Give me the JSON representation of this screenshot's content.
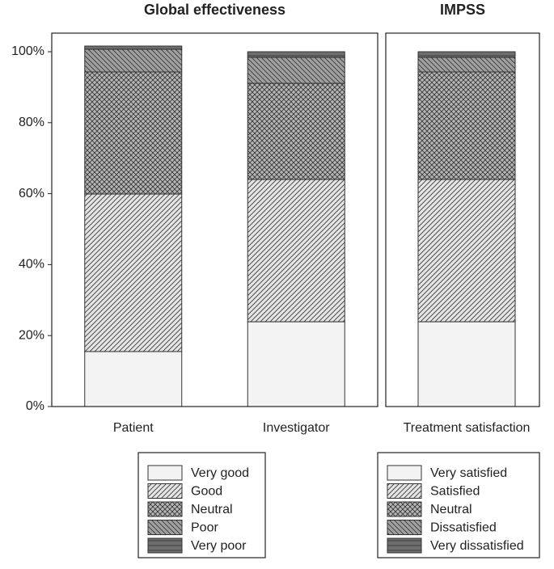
{
  "chart_data": [
    {
      "type": "bar",
      "stacked": true,
      "title": "Global effectiveness",
      "categories": [
        "Patient",
        "Investigator"
      ],
      "series": [
        {
          "name": "Very good",
          "color": "#f3f3f3",
          "pattern": "none",
          "values": [
            15.5,
            23.9
          ]
        },
        {
          "name": "Good",
          "color": "#e4e4e4",
          "pattern": "diagonal",
          "values": [
            44.4,
            40.1
          ]
        },
        {
          "name": "Neutral",
          "color": "#b5b5b5",
          "pattern": "crosshatch",
          "values": [
            34.4,
            27.1
          ]
        },
        {
          "name": "Poor",
          "color": "#a0a0a0",
          "pattern": "back-diagonal",
          "values": [
            6.4,
            7.3
          ]
        },
        {
          "name": "Very poor",
          "color": "#6e6e6e",
          "pattern": "horizontal",
          "values": [
            0.9,
            1.6
          ]
        }
      ],
      "ylim": [
        0,
        100
      ],
      "yticks": [
        {
          "value": 0,
          "label": "0%"
        },
        {
          "value": 20,
          "label": "20%"
        },
        {
          "value": 40,
          "label": "40%"
        },
        {
          "value": 60,
          "label": "60%"
        },
        {
          "value": 80,
          "label": "80%"
        },
        {
          "value": 100,
          "label": "100%"
        }
      ]
    },
    {
      "type": "bar",
      "stacked": true,
      "title": "IMPSS",
      "categories": [
        "Treatment satisfaction"
      ],
      "series": [
        {
          "name": "Very satisfied",
          "color": "#f3f3f3",
          "pattern": "none",
          "values": [
            23.9
          ]
        },
        {
          "name": "Satisfied",
          "color": "#e4e4e4",
          "pattern": "diagonal",
          "values": [
            40.1
          ]
        },
        {
          "name": "Neutral",
          "color": "#b5b5b5",
          "pattern": "crosshatch",
          "values": [
            30.3
          ]
        },
        {
          "name": "Dissatisfied",
          "color": "#a0a0a0",
          "pattern": "back-diagonal",
          "values": [
            4.1
          ]
        },
        {
          "name": "Very dissatisfied",
          "color": "#6e6e6e",
          "pattern": "horizontal",
          "values": [
            1.6
          ]
        }
      ],
      "ylim": [
        0,
        100
      ]
    }
  ]
}
